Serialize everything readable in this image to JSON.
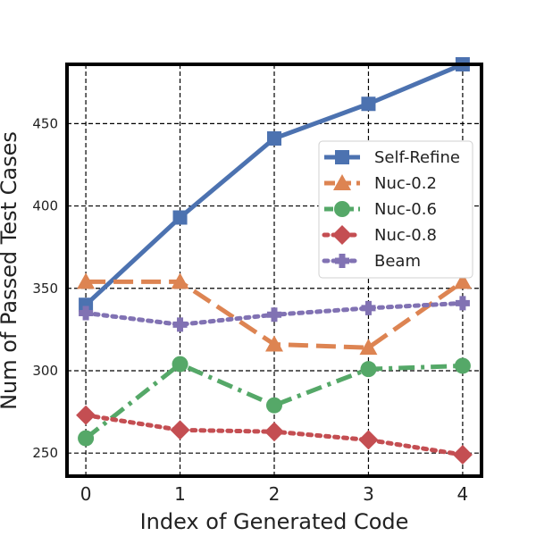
{
  "chart_data": {
    "type": "line",
    "title": "",
    "xlabel": "Index of Generated Code",
    "ylabel": "Num of Passed Test Cases",
    "x": [
      0,
      1,
      2,
      3,
      4
    ],
    "xticks": [
      "0",
      "1",
      "2",
      "3",
      "4"
    ],
    "yticks": [
      250,
      300,
      350,
      400,
      450
    ],
    "ytick_labels": [
      "250",
      "300",
      "350",
      "400",
      "450"
    ],
    "xlim": [
      -0.2,
      4.2
    ],
    "ylim": [
      236,
      486
    ],
    "grid": true,
    "legend_position": "upper-right",
    "series": [
      {
        "name": "Self-Refine",
        "values": [
          340,
          393,
          441,
          462,
          486
        ],
        "color": "#4c72b0",
        "marker": "square",
        "dash": "solid"
      },
      {
        "name": "Nuc-0.2",
        "values": [
          354,
          354,
          316,
          314,
          354
        ],
        "color": "#dd8452",
        "marker": "triangle",
        "dash": "dashed"
      },
      {
        "name": "Nuc-0.6",
        "values": [
          259,
          304,
          279,
          301,
          303
        ],
        "color": "#55a868",
        "marker": "circle",
        "dash": "dashdot"
      },
      {
        "name": "Nuc-0.8",
        "values": [
          273,
          264,
          263,
          258,
          249
        ],
        "color": "#c44e52",
        "marker": "diamond",
        "dash": "dotted"
      },
      {
        "name": "Beam",
        "values": [
          335,
          328,
          334,
          338,
          341
        ],
        "color": "#8172b3",
        "marker": "plus",
        "dash": "dotted"
      }
    ]
  }
}
